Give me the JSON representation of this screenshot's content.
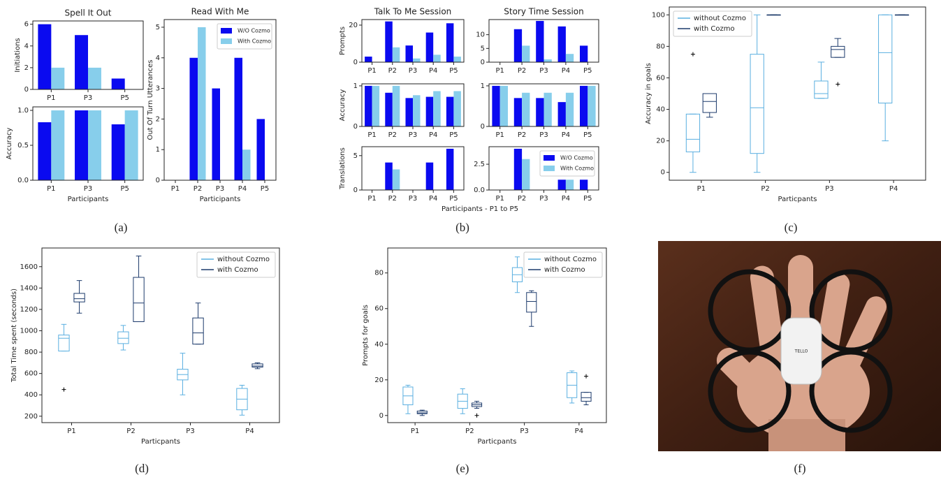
{
  "chart_data": [
    {
      "type": "bar",
      "title": "Spell It Out",
      "ylabel": "Initiations",
      "categories": [
        "P1",
        "P3",
        "P5"
      ],
      "series": [
        {
          "color": "#0a0af0",
          "values": [
            6,
            5,
            1
          ]
        },
        {
          "color": "#87ceeb",
          "values": [
            2,
            2,
            0
          ]
        }
      ],
      "ylim": [
        0,
        6.3
      ],
      "yticks": [
        0,
        2,
        4,
        6
      ]
    },
    {
      "type": "bar",
      "ylabel": "Accuracy",
      "xlabel": "Participants",
      "categories": [
        "P1",
        "P3",
        "P5"
      ],
      "series": [
        {
          "color": "#0a0af0",
          "values": [
            0.83,
            1.0,
            0.8
          ]
        },
        {
          "color": "#87ceeb",
          "values": [
            1.0,
            1.0,
            1.0
          ]
        }
      ],
      "ylim": [
        0,
        1.05
      ],
      "yticks": [
        {
          "value": 0,
          "label": "0.0"
        },
        {
          "value": 0.5,
          "label": "0.5"
        },
        {
          "value": 1,
          "label": "1.0"
        }
      ]
    },
    {
      "type": "bar",
      "title": "Read With Me",
      "ylabel": "Out Of Turn Utterances",
      "xlabel": "Participants",
      "categories": [
        "P1",
        "P2",
        "P3",
        "P4",
        "P5"
      ],
      "series": [
        {
          "name": "W/O Cozmo",
          "color": "#0a0af0",
          "values": [
            0,
            4,
            3,
            4,
            2
          ]
        },
        {
          "name": "With Cozmo",
          "color": "#87ceeb",
          "values": [
            0,
            5,
            0,
            1,
            0
          ]
        }
      ],
      "ylim": [
        0,
        5.25
      ],
      "yticks": [
        0,
        1,
        2,
        3,
        4,
        5
      ],
      "legend": "upper right"
    },
    {
      "type": "bar",
      "title": "Talk To Me Session",
      "ylabel": "Prompts",
      "categories": [
        "P1",
        "P2",
        "P3",
        "P4",
        "P5"
      ],
      "series": [
        {
          "color": "#0a0af0",
          "values": [
            3,
            22,
            9,
            16,
            21
          ]
        },
        {
          "color": "#87ceeb",
          "values": [
            0,
            8,
            2,
            4,
            3
          ]
        }
      ],
      "ylim": [
        0,
        23
      ],
      "yticks": [
        0,
        20
      ]
    },
    {
      "type": "bar",
      "title": "Story Time Session",
      "categories": [
        "P1",
        "P2",
        "P3",
        "P4",
        "P5"
      ],
      "series": [
        {
          "color": "#0a0af0",
          "values": [
            0,
            12,
            15,
            13,
            6
          ]
        },
        {
          "color": "#87ceeb",
          "values": [
            0,
            6,
            1,
            3,
            0
          ]
        }
      ],
      "ylim": [
        0,
        15.5
      ],
      "yticks": [
        0,
        5,
        10
      ]
    },
    {
      "type": "bar",
      "ylabel": "Accuracy",
      "categories": [
        "P1",
        "P2",
        "P3",
        "P4",
        "P5"
      ],
      "series": [
        {
          "color": "#0a0af0",
          "values": [
            1,
            0.83,
            0.7,
            0.73,
            0.73
          ]
        },
        {
          "color": "#87ceeb",
          "values": [
            1,
            1,
            0.77,
            0.87,
            0.87
          ]
        }
      ],
      "ylim": [
        0,
        1.05
      ],
      "yticks": [
        0,
        1
      ]
    },
    {
      "type": "bar",
      "categories": [
        "P1",
        "P2",
        "P3",
        "P4",
        "P5"
      ],
      "series": [
        {
          "color": "#0a0af0",
          "values": [
            1,
            0.7,
            0.7,
            0.6,
            1
          ]
        },
        {
          "color": "#87ceeb",
          "values": [
            1,
            0.83,
            0.83,
            0.83,
            1
          ]
        }
      ],
      "ylim": [
        0,
        1.05
      ],
      "yticks": [
        0,
        1
      ]
    },
    {
      "type": "bar",
      "ylabel": "Translations",
      "xlabel": "Participants - P1 to P5",
      "categories": [
        "P1",
        "P2",
        "P3",
        "P4",
        "P5"
      ],
      "series": [
        {
          "color": "#0a0af0",
          "values": [
            0,
            4,
            0,
            4,
            6
          ]
        },
        {
          "color": "#87ceeb",
          "values": [
            0,
            3,
            0,
            0,
            0
          ]
        }
      ],
      "ylim": [
        0,
        6.3
      ],
      "yticks": [
        0,
        5
      ]
    },
    {
      "type": "bar",
      "categories": [
        "P1",
        "P2",
        "P3",
        "P4",
        "P5"
      ],
      "series": [
        {
          "name": "W/O Cozmo",
          "color": "#0a0af0",
          "values": [
            0,
            4,
            0,
            1,
            1
          ]
        },
        {
          "name": "With Cozmo",
          "color": "#87ceeb",
          "values": [
            0,
            3,
            0,
            1,
            0
          ]
        }
      ],
      "ylim": [
        0,
        4.2
      ],
      "yticks": [
        {
          "value": 0,
          "label": "0.0"
        },
        {
          "value": 2.5,
          "label": "2.5"
        }
      ],
      "legend": "upper right"
    },
    {
      "type": "box",
      "ylabel": "Accuracy in goals",
      "xlabel": "Particpants",
      "categories": [
        "P1",
        "P2",
        "P3",
        "P4"
      ],
      "series": [
        {
          "name": "without Cozmo",
          "color": "#5aafe0",
          "boxes": [
            {
              "min": 0,
              "q1": 13,
              "median": 21,
              "q3": 37,
              "max": 37,
              "fliers": [
                75
              ]
            },
            {
              "min": 0,
              "q1": 12,
              "median": 41,
              "q3": 75,
              "max": 100
            },
            {
              "min": 47,
              "q1": 47,
              "median": 50,
              "q3": 58,
              "max": 70
            },
            {
              "min": 20,
              "q1": 44,
              "median": 76,
              "q3": 100,
              "max": 100
            }
          ]
        },
        {
          "name": "with Cozmo",
          "color": "#1c3a6b",
          "boxes": [
            {
              "min": 35,
              "q1": 38,
              "median": 45,
              "q3": 50,
              "max": 50
            },
            {
              "min": 100,
              "q1": 100,
              "median": 100,
              "q3": 100,
              "max": 100
            },
            {
              "min": 73,
              "q1": 73,
              "median": 78,
              "q3": 80,
              "max": 85,
              "fliers": [
                56
              ]
            },
            {
              "min": 100,
              "q1": 100,
              "median": 100,
              "q3": 100,
              "max": 100
            }
          ]
        }
      ],
      "ylim": [
        -5,
        105
      ],
      "yticks": [
        0,
        20,
        40,
        60,
        80,
        100
      ],
      "legend": "upper left"
    },
    {
      "type": "box",
      "ylabel": "Total Time spent (seconds)",
      "xlabel": "Particpants",
      "categories": [
        "P1",
        "P2",
        "P3",
        "P4"
      ],
      "series": [
        {
          "name": "without Cozmo",
          "color": "#5aafe0",
          "boxes": [
            {
              "min": 810,
              "q1": 810,
              "median": 930,
              "q3": 960,
              "max": 1060,
              "fliers": [
                450
              ]
            },
            {
              "min": 820,
              "q1": 880,
              "median": 930,
              "q3": 990,
              "max": 1050
            },
            {
              "min": 400,
              "q1": 540,
              "median": 590,
              "q3": 640,
              "max": 790
            },
            {
              "min": 210,
              "q1": 260,
              "median": 360,
              "q3": 460,
              "max": 490
            }
          ]
        },
        {
          "name": "with Cozmo",
          "color": "#1c3a6b",
          "boxes": [
            {
              "min": 1165,
              "q1": 1270,
              "median": 1300,
              "q3": 1350,
              "max": 1470
            },
            {
              "min": 1085,
              "q1": 1085,
              "median": 1260,
              "q3": 1500,
              "max": 1700
            },
            {
              "min": 875,
              "q1": 875,
              "median": 980,
              "q3": 1120,
              "max": 1260
            },
            {
              "min": 645,
              "q1": 660,
              "median": 670,
              "q3": 690,
              "max": 700
            }
          ]
        }
      ],
      "ylim": [
        140,
        1775
      ],
      "yticks": [
        200,
        400,
        600,
        800,
        1000,
        1200,
        1400,
        1600
      ],
      "legend": "upper right"
    },
    {
      "type": "box",
      "ylabel": "Prompts for goals",
      "xlabel": "Particpants",
      "categories": [
        "P1",
        "P2",
        "P3",
        "P4"
      ],
      "series": [
        {
          "name": "without Cozmo",
          "color": "#5aafe0",
          "boxes": [
            {
              "min": 1,
              "q1": 6,
              "median": 11,
              "q3": 16,
              "max": 17
            },
            {
              "min": 1,
              "q1": 4,
              "median": 8,
              "q3": 12,
              "max": 15
            },
            {
              "min": 69,
              "q1": 75,
              "median": 79,
              "q3": 83,
              "max": 89
            },
            {
              "min": 7,
              "q1": 10,
              "median": 17,
              "q3": 24,
              "max": 25
            }
          ]
        },
        {
          "name": "with Cozmo",
          "color": "#1c3a6b",
          "boxes": [
            {
              "min": 0,
              "q1": 1,
              "median": 1.5,
              "q3": 2.5,
              "max": 3
            },
            {
              "min": 4,
              "q1": 5,
              "median": 6,
              "q3": 7,
              "max": 8,
              "fliers": [
                0
              ]
            },
            {
              "min": 50,
              "q1": 58,
              "median": 64,
              "q3": 69,
              "max": 70
            },
            {
              "min": 6,
              "q1": 8,
              "median": 10,
              "q3": 13,
              "max": 13,
              "fliers": [
                22
              ]
            }
          ]
        }
      ],
      "ylim": [
        -4,
        94
      ],
      "yticks": [
        0,
        20,
        40,
        60,
        80
      ],
      "legend": "upper right"
    }
  ],
  "captions": [
    "(a)",
    "(b)",
    "(c)",
    "(d)",
    "(e)",
    "(f)"
  ],
  "photo": {
    "text": "TELLO"
  }
}
